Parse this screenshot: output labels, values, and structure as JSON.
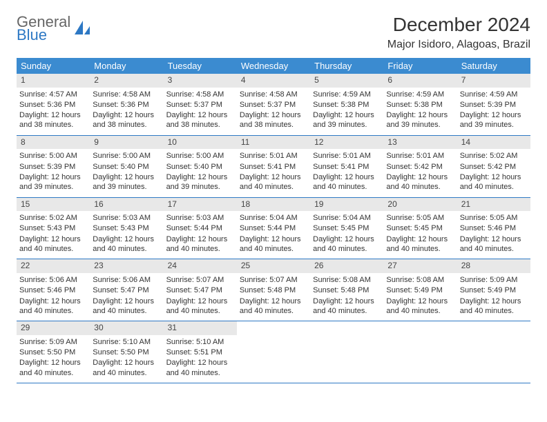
{
  "brand": {
    "top": "General",
    "bottom": "Blue"
  },
  "title": "December 2024",
  "location": "Major Isidoro, Alagoas, Brazil",
  "colors": {
    "header_bg": "#3b8bd0",
    "week_border": "#2d78c4",
    "daynum_bg": "#e8e8e8",
    "brand_blue": "#2d78c4"
  },
  "daysOfWeek": [
    "Sunday",
    "Monday",
    "Tuesday",
    "Wednesday",
    "Thursday",
    "Friday",
    "Saturday"
  ],
  "weeks": [
    [
      {
        "n": "1",
        "sr": "4:57 AM",
        "ss": "5:36 PM",
        "dl": "12 hours and 38 minutes."
      },
      {
        "n": "2",
        "sr": "4:58 AM",
        "ss": "5:36 PM",
        "dl": "12 hours and 38 minutes."
      },
      {
        "n": "3",
        "sr": "4:58 AM",
        "ss": "5:37 PM",
        "dl": "12 hours and 38 minutes."
      },
      {
        "n": "4",
        "sr": "4:58 AM",
        "ss": "5:37 PM",
        "dl": "12 hours and 38 minutes."
      },
      {
        "n": "5",
        "sr": "4:59 AM",
        "ss": "5:38 PM",
        "dl": "12 hours and 39 minutes."
      },
      {
        "n": "6",
        "sr": "4:59 AM",
        "ss": "5:38 PM",
        "dl": "12 hours and 39 minutes."
      },
      {
        "n": "7",
        "sr": "4:59 AM",
        "ss": "5:39 PM",
        "dl": "12 hours and 39 minutes."
      }
    ],
    [
      {
        "n": "8",
        "sr": "5:00 AM",
        "ss": "5:39 PM",
        "dl": "12 hours and 39 minutes."
      },
      {
        "n": "9",
        "sr": "5:00 AM",
        "ss": "5:40 PM",
        "dl": "12 hours and 39 minutes."
      },
      {
        "n": "10",
        "sr": "5:00 AM",
        "ss": "5:40 PM",
        "dl": "12 hours and 39 minutes."
      },
      {
        "n": "11",
        "sr": "5:01 AM",
        "ss": "5:41 PM",
        "dl": "12 hours and 40 minutes."
      },
      {
        "n": "12",
        "sr": "5:01 AM",
        "ss": "5:41 PM",
        "dl": "12 hours and 40 minutes."
      },
      {
        "n": "13",
        "sr": "5:01 AM",
        "ss": "5:42 PM",
        "dl": "12 hours and 40 minutes."
      },
      {
        "n": "14",
        "sr": "5:02 AM",
        "ss": "5:42 PM",
        "dl": "12 hours and 40 minutes."
      }
    ],
    [
      {
        "n": "15",
        "sr": "5:02 AM",
        "ss": "5:43 PM",
        "dl": "12 hours and 40 minutes."
      },
      {
        "n": "16",
        "sr": "5:03 AM",
        "ss": "5:43 PM",
        "dl": "12 hours and 40 minutes."
      },
      {
        "n": "17",
        "sr": "5:03 AM",
        "ss": "5:44 PM",
        "dl": "12 hours and 40 minutes."
      },
      {
        "n": "18",
        "sr": "5:04 AM",
        "ss": "5:44 PM",
        "dl": "12 hours and 40 minutes."
      },
      {
        "n": "19",
        "sr": "5:04 AM",
        "ss": "5:45 PM",
        "dl": "12 hours and 40 minutes."
      },
      {
        "n": "20",
        "sr": "5:05 AM",
        "ss": "5:45 PM",
        "dl": "12 hours and 40 minutes."
      },
      {
        "n": "21",
        "sr": "5:05 AM",
        "ss": "5:46 PM",
        "dl": "12 hours and 40 minutes."
      }
    ],
    [
      {
        "n": "22",
        "sr": "5:06 AM",
        "ss": "5:46 PM",
        "dl": "12 hours and 40 minutes."
      },
      {
        "n": "23",
        "sr": "5:06 AM",
        "ss": "5:47 PM",
        "dl": "12 hours and 40 minutes."
      },
      {
        "n": "24",
        "sr": "5:07 AM",
        "ss": "5:47 PM",
        "dl": "12 hours and 40 minutes."
      },
      {
        "n": "25",
        "sr": "5:07 AM",
        "ss": "5:48 PM",
        "dl": "12 hours and 40 minutes."
      },
      {
        "n": "26",
        "sr": "5:08 AM",
        "ss": "5:48 PM",
        "dl": "12 hours and 40 minutes."
      },
      {
        "n": "27",
        "sr": "5:08 AM",
        "ss": "5:49 PM",
        "dl": "12 hours and 40 minutes."
      },
      {
        "n": "28",
        "sr": "5:09 AM",
        "ss": "5:49 PM",
        "dl": "12 hours and 40 minutes."
      }
    ],
    [
      {
        "n": "29",
        "sr": "5:09 AM",
        "ss": "5:50 PM",
        "dl": "12 hours and 40 minutes."
      },
      {
        "n": "30",
        "sr": "5:10 AM",
        "ss": "5:50 PM",
        "dl": "12 hours and 40 minutes."
      },
      {
        "n": "31",
        "sr": "5:10 AM",
        "ss": "5:51 PM",
        "dl": "12 hours and 40 minutes."
      },
      null,
      null,
      null,
      null
    ]
  ],
  "labels": {
    "sunrise": "Sunrise:",
    "sunset": "Sunset:",
    "daylight": "Daylight:"
  }
}
